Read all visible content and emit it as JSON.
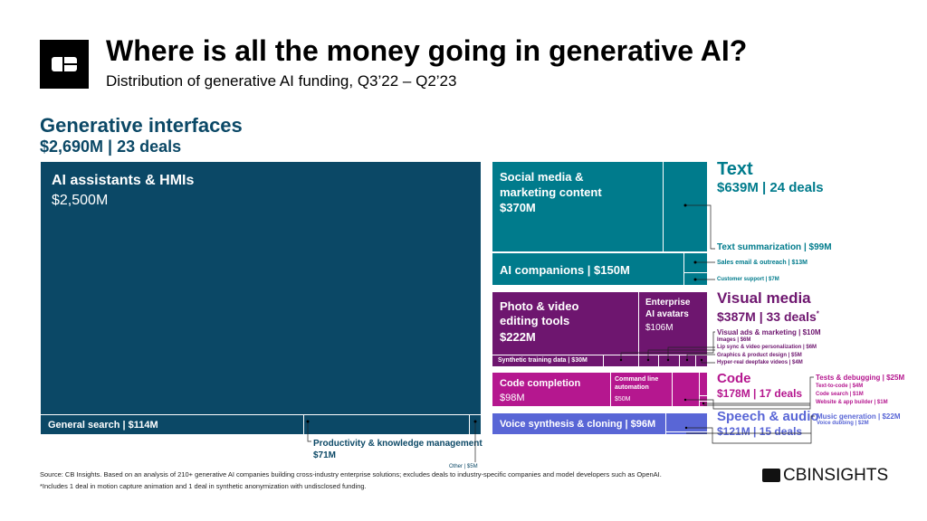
{
  "header": {
    "title": "Where is all the money going in generative AI?",
    "subtitle": "Distribution of generative AI funding, Q3’22 – Q2’23"
  },
  "colors": {
    "interfaces": "#0b4866",
    "text": "#007b8c",
    "visual": "#6e166f",
    "code": "#b5178f",
    "speech": "#5966d6"
  },
  "groups": {
    "interfaces": {
      "name": "Generative interfaces",
      "summary": "$2,690M | 23 deals",
      "items": [
        {
          "name": "AI assistants & HMIs",
          "value": "$2,500M"
        },
        {
          "name": "General search | $114M"
        },
        {
          "name": "Productivity & knowledge management",
          "value": "$71M"
        },
        {
          "name": "Other | $5M"
        }
      ]
    },
    "text": {
      "name": "Text",
      "summary": "$639M | 24 deals",
      "items": [
        {
          "name": "Social media & marketing content",
          "value": "$370M"
        },
        {
          "name": "Text summarization | $99M"
        },
        {
          "name": "AI companions | $150M"
        },
        {
          "name": "Sales email & outreach | $13M"
        },
        {
          "name": "Customer support | $7M"
        }
      ]
    },
    "visual": {
      "name": "Visual media",
      "summary": "$387M | 33 deals",
      "footnote_mark": "*",
      "items": [
        {
          "name": "Photo & video editing tools",
          "value": "$222M"
        },
        {
          "name": "Enterprise AI avatars",
          "value": "$106M"
        },
        {
          "name": "Synthetic training data | $30M"
        },
        {
          "name": "Visual ads & marketing | $10M"
        },
        {
          "name": "Images | $6M"
        },
        {
          "name": "Lip sync & video personalization | $6M"
        },
        {
          "name": "Graphics & product design | $5M"
        },
        {
          "name": "Hyper-real deepfake videos | $4M"
        }
      ]
    },
    "code": {
      "name": "Code",
      "summary": "$178M | 17 deals",
      "items": [
        {
          "name": "Code completion",
          "value": "$98M"
        },
        {
          "name": "Command line automation",
          "value": "$50M"
        },
        {
          "name": "Tests & debugging | $25M"
        },
        {
          "name": "Text-to-code | $4M"
        },
        {
          "name": "Code search | $1M"
        },
        {
          "name": "Website & app builder | $1M"
        }
      ]
    },
    "speech": {
      "name": "Speech & audio",
      "summary": "$121M | 15 deals",
      "items": [
        {
          "name": "Voice synthesis & cloning | $96M"
        },
        {
          "name": "Music generation | $22M"
        },
        {
          "name": "Voice dubbing | $2M"
        }
      ]
    }
  },
  "footer": {
    "source": "Source: CB Insights. Based on an analysis of 210+ generative AI companies building cross-industry enterprise solutions; excludes deals to industry-specific companies and model developers such as OpenAI.",
    "note": "*Includes 1 deal in motion capture animation and 1 deal in synthetic anonymization with undisclosed funding.",
    "logo": "CBINSIGHTS"
  }
}
